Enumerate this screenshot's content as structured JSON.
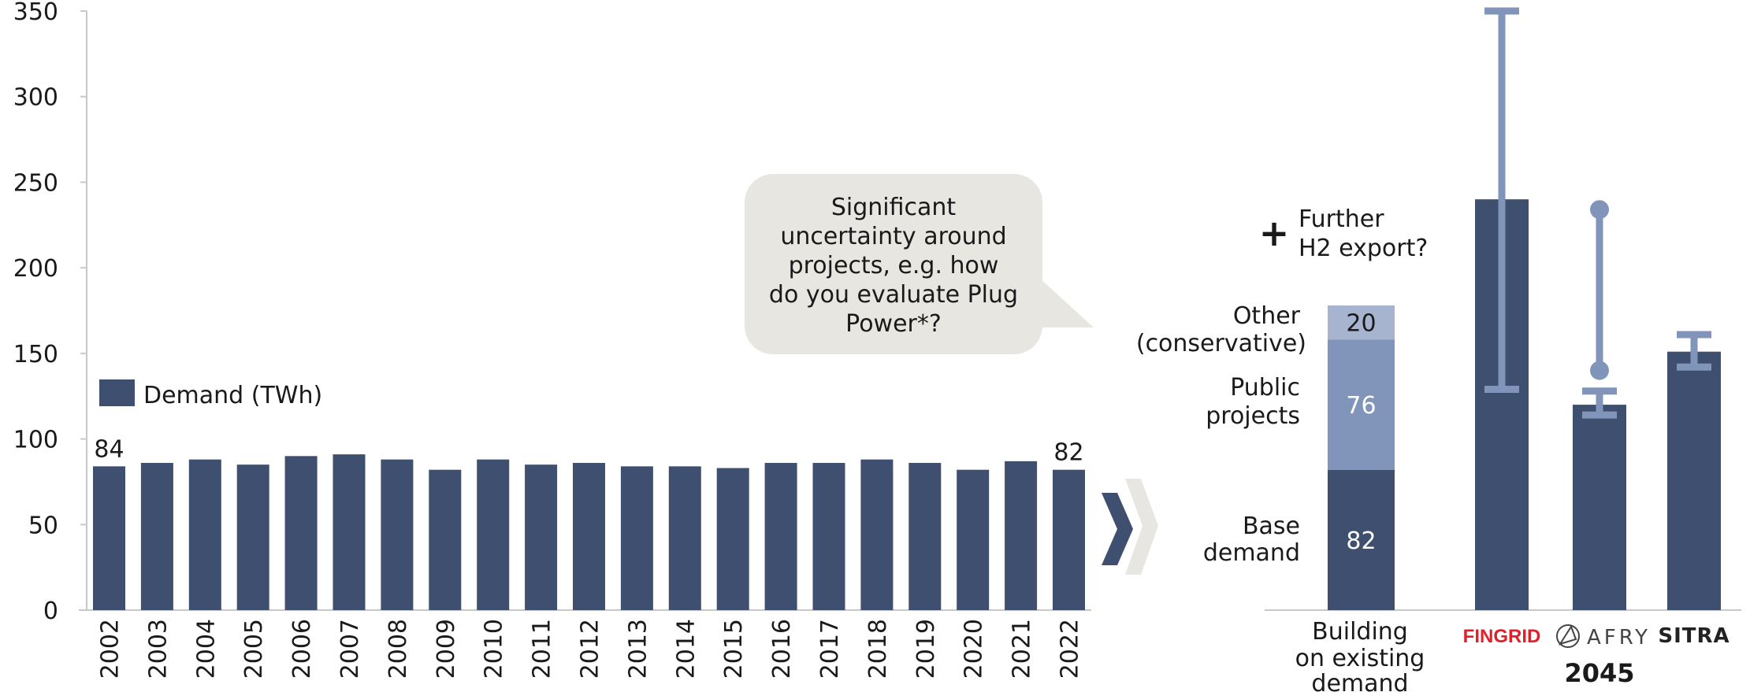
{
  "colors": {
    "bar": "#3f4f6f",
    "public": "#8195ba",
    "other": "#a7b4cf",
    "range": "#8195ba",
    "bubble": "#e8e6e1",
    "chevron_dark": "#3f4f6f",
    "chevron_light": "#e8e6e1",
    "axis": "#c8c8c8",
    "fingrid": "#e0202a"
  },
  "chart_data": [
    {
      "type": "bar",
      "legend": [
        "Demand (TWh)"
      ],
      "legend_position": "left",
      "categories": [
        "2002",
        "2003",
        "2004",
        "2005",
        "2006",
        "2007",
        "2008",
        "2009",
        "2010",
        "2011",
        "2012",
        "2013",
        "2014",
        "2015",
        "2016",
        "2017",
        "2018",
        "2019",
        "2020",
        "2021",
        "2022"
      ],
      "series": [
        {
          "name": "Demand (TWh)",
          "values": [
            84,
            86,
            88,
            85,
            90,
            91,
            88,
            82,
            88,
            85,
            86,
            84,
            84,
            83,
            86,
            86,
            88,
            86,
            82,
            87,
            82
          ]
        }
      ],
      "data_labels": [
        {
          "category": "2002",
          "text": "84"
        },
        {
          "category": "2022",
          "text": "82"
        }
      ],
      "yticks": [
        "0",
        "50",
        "100",
        "150",
        "200",
        "250",
        "300",
        "350"
      ],
      "ylim": [
        0,
        350
      ],
      "grid": false
    },
    {
      "type": "bar",
      "stacked_category": "Building on existing demand",
      "stack": [
        {
          "name": "Base demand",
          "value": 82,
          "label": "82"
        },
        {
          "name": "Public projects",
          "value": 76,
          "label": "76"
        },
        {
          "name": "Other (conservative)",
          "value": 20,
          "label": "20"
        }
      ],
      "scenarios": [
        {
          "name": "FINGRID",
          "value": 240,
          "range_low": 129,
          "range_high": 350,
          "range_style": "whisker"
        },
        {
          "name": "AFRY",
          "value": 120,
          "range_low": 114,
          "range_high": 128,
          "range_style": "whisker",
          "extra_range_low": 140,
          "extra_range_high": 234
        },
        {
          "name": "SITRA",
          "value": 151,
          "range_low": 142,
          "range_high": 161,
          "range_style": "whisker"
        }
      ],
      "ylim": [
        0,
        350
      ]
    }
  ],
  "labels": {
    "cat_building": [
      "Building",
      "on existing",
      "demand"
    ],
    "base": [
      "Base",
      "demand"
    ],
    "public": [
      "Public",
      "projects"
    ],
    "other": [
      "Other",
      "(conservative)"
    ],
    "plus": "+",
    "h2": [
      "Further",
      "H2 export?"
    ],
    "year": "2045"
  },
  "bubble": {
    "lines": [
      "Significant",
      "uncertainty around",
      "projects, e.g. how",
      "do you evaluate Plug",
      "Power*?"
    ]
  },
  "logos": {
    "fingrid": "FINGRID",
    "afry": "AFRY",
    "sitra": "SITRA"
  }
}
